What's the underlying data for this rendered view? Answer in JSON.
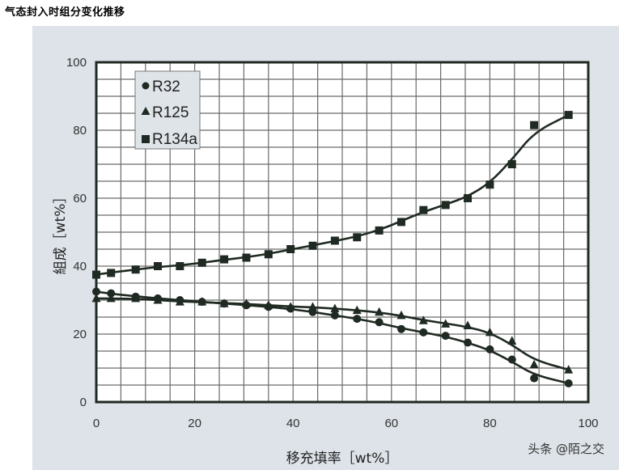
{
  "page": {
    "title": "气态封入时组分变化推移",
    "watermark": "头条 @陌之交"
  },
  "chart_data": {
    "type": "scatter",
    "title": "气态封入时组分变化推移",
    "xlabel": "移充填率［wt%］",
    "ylabel": "組成［wt%］",
    "xlim": [
      0,
      100
    ],
    "ylim": [
      0,
      100
    ],
    "xticks": [
      0,
      20,
      40,
      60,
      80,
      100
    ],
    "yticks": [
      0,
      20,
      40,
      60,
      80,
      100
    ],
    "grid": true,
    "grid_step": 5,
    "legend_position": "upper-left",
    "series": [
      {
        "name": "R32",
        "marker": "circle",
        "x": [
          0,
          3,
          8,
          12.5,
          17,
          21.5,
          26,
          30.5,
          35,
          39.5,
          44,
          48.5,
          53,
          57.5,
          62,
          66.5,
          71,
          75.5,
          80,
          84.5,
          89,
          96
        ],
        "values": [
          32.5,
          32,
          31,
          30.5,
          30,
          29.5,
          29,
          28.5,
          28,
          27.5,
          26.5,
          25.5,
          24.5,
          23.5,
          21.5,
          20.5,
          19.5,
          17.5,
          15.5,
          12.5,
          7,
          5.5
        ],
        "fit_line": true
      },
      {
        "name": "R125",
        "marker": "triangle",
        "x": [
          0,
          3,
          8,
          12.5,
          17,
          21.5,
          26,
          30.5,
          35,
          39.5,
          44,
          48.5,
          53,
          57.5,
          62,
          66.5,
          71,
          75.5,
          80,
          84.5,
          89,
          96
        ],
        "values": [
          30.5,
          30.5,
          30.5,
          30,
          29.5,
          29.5,
          29,
          29,
          28.5,
          28,
          28,
          27.5,
          27,
          26.5,
          25.5,
          24,
          23,
          22.5,
          20.5,
          18,
          11,
          9.5
        ],
        "fit_line": true
      },
      {
        "name": "R134a",
        "marker": "square",
        "x": [
          0,
          3,
          8,
          12.5,
          17,
          21.5,
          26,
          30.5,
          35,
          39.5,
          44,
          48.5,
          53,
          57.5,
          62,
          66.5,
          71,
          75.5,
          80,
          84.5,
          89,
          96
        ],
        "values": [
          37.5,
          38,
          39,
          40,
          40,
          41,
          42,
          42.5,
          43.5,
          45,
          46,
          47.5,
          48.5,
          50.5,
          53,
          56.5,
          58,
          60,
          64,
          70,
          81.5,
          84.5
        ],
        "fit_line": true
      }
    ]
  },
  "legend": {
    "items": [
      {
        "label": "R32",
        "symbol": "●"
      },
      {
        "label": "R125",
        "symbol": "▲"
      },
      {
        "label": "R134a",
        "symbol": "■"
      }
    ]
  },
  "axes": {
    "xlabel": "移充填率［wt%］",
    "ylabel": "組成［wt%］",
    "xticks": [
      "0",
      "20",
      "40",
      "60",
      "80",
      "100"
    ],
    "yticks": [
      "0",
      "20",
      "40",
      "60",
      "80",
      "100"
    ]
  },
  "colors": {
    "panel_bg": "#dde3e9",
    "plot_bg": "#ffffff",
    "grid": "#6a6a6a",
    "ink": "#1f2a22"
  }
}
